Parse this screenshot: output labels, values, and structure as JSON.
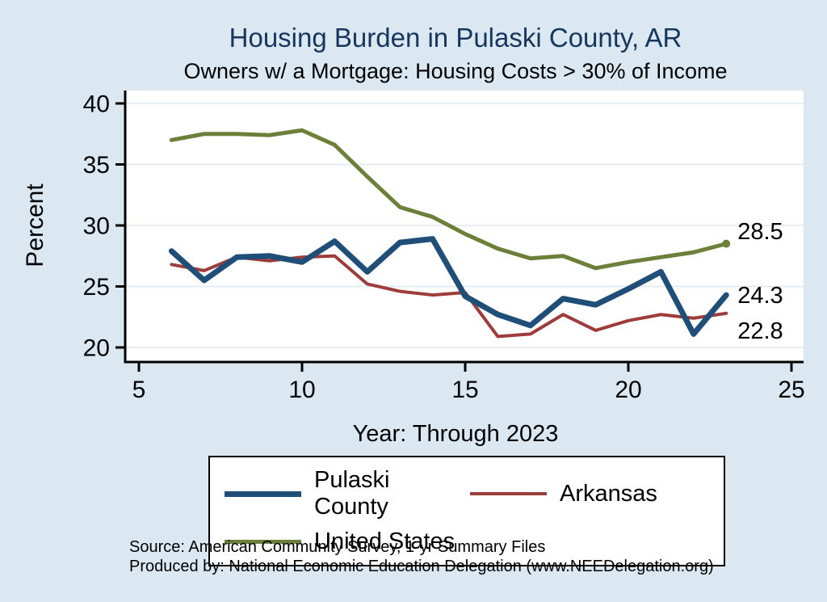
{
  "header": {
    "title": "Housing Burden in Pulaski County, AR",
    "subtitle": "Owners w/ a Mortgage: Housing Costs > 30% of Income"
  },
  "axes": {
    "y_label": "Percent",
    "x_label": "Year: Through 2023",
    "y_ticks": [
      20,
      25,
      30,
      35,
      40
    ],
    "x_ticks": [
      5,
      10,
      15,
      20,
      25
    ]
  },
  "chart_data": {
    "type": "line",
    "title": "Housing Burden in Pulaski County, AR",
    "subtitle": "Owners w/ a Mortgage: Housing Costs > 30% of Income",
    "xlabel": "Year: Through 2023",
    "ylabel": "Percent",
    "xlim": [
      5,
      25
    ],
    "ylim": [
      20,
      40
    ],
    "grid": true,
    "legend_position": "bottom",
    "x": [
      6,
      7,
      8,
      9,
      10,
      11,
      12,
      13,
      14,
      15,
      16,
      17,
      18,
      19,
      20,
      21,
      22,
      23
    ],
    "series": [
      {
        "name": "United States",
        "color": "#6d8039",
        "stroke_width": 5,
        "end_label": "28.5",
        "end_marker": true,
        "label_dy": -16,
        "values": [
          37.0,
          37.5,
          37.5,
          37.4,
          37.8,
          36.6,
          34.0,
          31.5,
          30.7,
          29.3,
          28.1,
          27.3,
          27.5,
          26.5,
          27.0,
          27.4,
          27.8,
          28.5
        ]
      },
      {
        "name": "Arkansas",
        "color": "#9e3b3b",
        "stroke_width": 4,
        "end_label": "22.8",
        "end_marker": false,
        "label_dy": 21,
        "values": [
          26.8,
          26.3,
          27.4,
          27.1,
          27.4,
          27.5,
          25.2,
          24.6,
          24.3,
          24.5,
          20.9,
          21.1,
          22.7,
          21.4,
          22.2,
          22.7,
          22.4,
          22.8
        ]
      },
      {
        "name": "Pulaski County",
        "color": "#1f4e79",
        "stroke_width": 7,
        "end_label": "24.3",
        "end_marker": false,
        "label_dy": 0,
        "values": [
          27.9,
          25.5,
          27.4,
          27.5,
          27.0,
          28.7,
          26.2,
          28.6,
          28.9,
          24.2,
          22.7,
          21.8,
          24.0,
          23.5,
          24.8,
          26.2,
          21.1,
          24.3
        ]
      }
    ]
  },
  "legend": {
    "items": [
      {
        "label": "Pulaski County",
        "color": "#1f4e79",
        "sample_height": 7
      },
      {
        "label": "Arkansas",
        "color": "#9e3b3b",
        "sample_height": 4
      },
      {
        "label": "United States",
        "color": "#6d8039",
        "sample_height": 5
      }
    ]
  },
  "footer": {
    "source": "Source: American Community Survey, 1-yr Summary Files",
    "produced": "Produced by: National Economic Education Delegation (www.NEEDelegation.org)"
  },
  "colors": {
    "background": "#dbe8f1",
    "plot_background": "#ffffff",
    "title": "#17365d",
    "grid": "#dde8f0",
    "axis": "#000000"
  }
}
